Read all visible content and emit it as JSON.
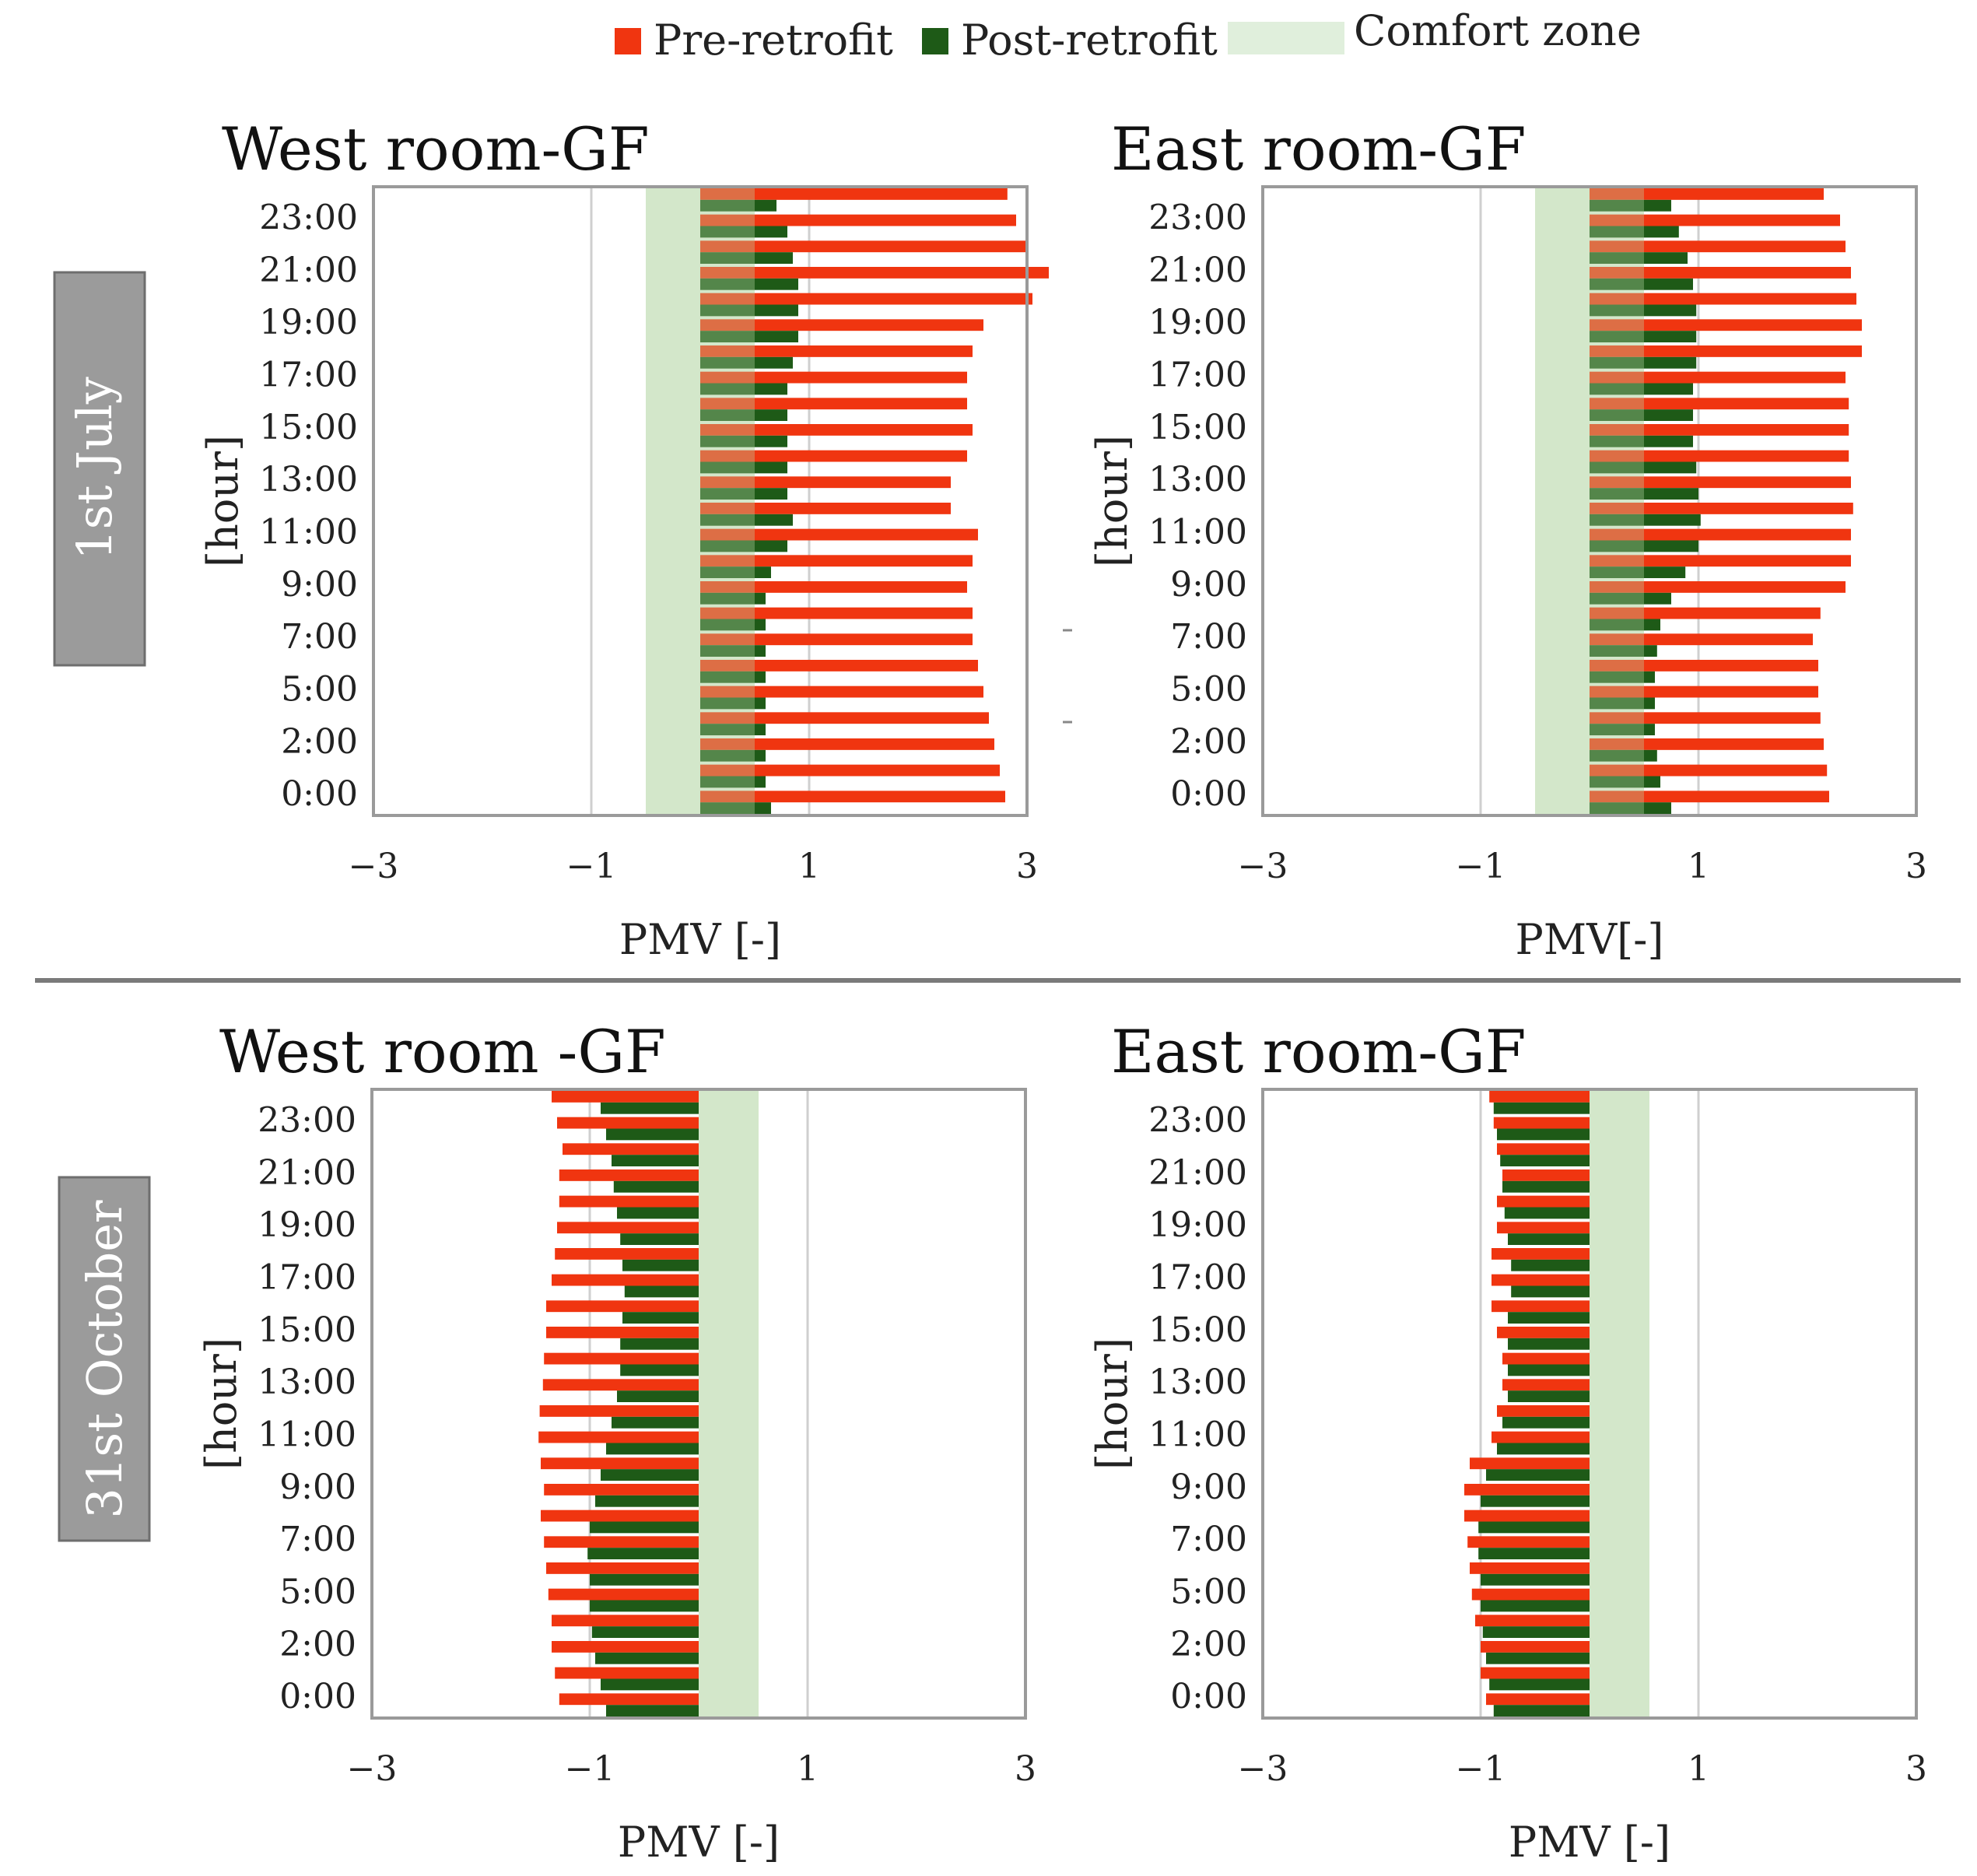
{
  "legend": {
    "pre": "Pre-retrofit",
    "post": "Post-retrofit",
    "comfort": "Comfort zone"
  },
  "colors": {
    "pre": "#f03510",
    "post": "#1e5a17",
    "comfort": "#e0efdc",
    "grid": "#cfcfcf",
    "frame": "#9a9a9a",
    "date_box": "#9b9b9b",
    "separator": "#7a7a7a"
  },
  "rows": [
    {
      "date_label": "1st July"
    },
    {
      "date_label": "31st October"
    }
  ],
  "chart_data": [
    {
      "type": "bar",
      "orientation": "horizontal",
      "title": "West room-GF",
      "date": "1st July",
      "xlabel": "PMV [-]",
      "ylabel": "[hour]",
      "xlim": [
        -3,
        3
      ],
      "xticks": [
        "−3",
        "−1",
        "1",
        "3"
      ],
      "yticks": [
        "0:00",
        "2:00",
        "5:00",
        "7:00",
        "9:00",
        "11:00",
        "13:00",
        "15:00",
        "17:00",
        "19:00",
        "21:00",
        "23:00"
      ],
      "hours": 24,
      "comfort_zone": [
        -0.5,
        0.5
      ],
      "series": [
        {
          "name": "Pre-retrofit",
          "values": [
            2.8,
            2.75,
            2.7,
            2.65,
            2.6,
            2.55,
            2.5,
            2.5,
            2.45,
            2.5,
            2.55,
            2.3,
            2.3,
            2.45,
            2.5,
            2.45,
            2.45,
            2.5,
            2.6,
            3.05,
            3.2,
            3.0,
            2.9,
            2.82
          ]
        },
        {
          "name": "Post-retrofit",
          "values": [
            0.65,
            0.6,
            0.6,
            0.6,
            0.6,
            0.6,
            0.6,
            0.6,
            0.6,
            0.65,
            0.8,
            0.85,
            0.8,
            0.8,
            0.8,
            0.8,
            0.8,
            0.85,
            0.9,
            0.9,
            0.9,
            0.85,
            0.8,
            0.7
          ]
        }
      ]
    },
    {
      "type": "bar",
      "orientation": "horizontal",
      "title": "East room-GF",
      "date": "1st July",
      "xlabel": "PMV[-]",
      "ylabel": "[hour]",
      "xlim": [
        -3,
        3
      ],
      "xticks": [
        "−3",
        "−1",
        "1",
        "3"
      ],
      "yticks": [
        "0:00",
        "2:00",
        "5:00",
        "7:00",
        "9:00",
        "11:00",
        "13:00",
        "15:00",
        "17:00",
        "19:00",
        "21:00",
        "23:00"
      ],
      "hours": 24,
      "comfort_zone": [
        -0.5,
        0.5
      ],
      "series": [
        {
          "name": "Pre-retrofit",
          "values": [
            2.2,
            2.18,
            2.15,
            2.12,
            2.1,
            2.1,
            2.05,
            2.12,
            2.35,
            2.4,
            2.4,
            2.42,
            2.4,
            2.38,
            2.38,
            2.38,
            2.35,
            2.5,
            2.5,
            2.45,
            2.4,
            2.35,
            2.3,
            2.15
          ]
        },
        {
          "name": "Post-retrofit",
          "values": [
            0.75,
            0.65,
            0.62,
            0.6,
            0.6,
            0.6,
            0.62,
            0.65,
            0.75,
            0.88,
            1.0,
            1.02,
            1.0,
            0.98,
            0.95,
            0.95,
            0.95,
            0.98,
            0.98,
            0.98,
            0.95,
            0.9,
            0.82,
            0.75
          ]
        }
      ]
    },
    {
      "type": "bar",
      "orientation": "horizontal",
      "title": "West room -GF",
      "date": "31st October",
      "xlabel": "PMV [-]",
      "ylabel": "[hour]",
      "xlim": [
        -3,
        3
      ],
      "xticks": [
        "−3",
        "−1",
        "1",
        "3"
      ],
      "yticks": [
        "0:00",
        "2:00",
        "5:00",
        "7:00",
        "9:00",
        "11:00",
        "13:00",
        "15:00",
        "17:00",
        "19:00",
        "21:00",
        "23:00"
      ],
      "hours": 24,
      "comfort_zone": [
        0,
        0.55
      ],
      "series": [
        {
          "name": "Pre-retrofit",
          "values": [
            -1.28,
            -1.32,
            -1.35,
            -1.35,
            -1.38,
            -1.4,
            -1.42,
            -1.45,
            -1.42,
            -1.45,
            -1.47,
            -1.46,
            -1.43,
            -1.42,
            -1.4,
            -1.4,
            -1.35,
            -1.32,
            -1.3,
            -1.28,
            -1.28,
            -1.25,
            -1.3,
            -1.35
          ]
        },
        {
          "name": "Post-retrofit",
          "values": [
            -0.85,
            -0.9,
            -0.95,
            -0.98,
            -1.0,
            -1.0,
            -1.02,
            -1.0,
            -0.95,
            -0.9,
            -0.85,
            -0.8,
            -0.75,
            -0.72,
            -0.72,
            -0.7,
            -0.68,
            -0.7,
            -0.72,
            -0.75,
            -0.78,
            -0.8,
            -0.85,
            -0.9
          ]
        }
      ]
    },
    {
      "type": "bar",
      "orientation": "horizontal",
      "title": "East room-GF",
      "date": "31st October",
      "xlabel": "PMV [-]",
      "ylabel": "[hour]",
      "xlim": [
        -3,
        3
      ],
      "xticks": [
        "−3",
        "−1",
        "1",
        "3"
      ],
      "yticks": [
        "0:00",
        "2:00",
        "5:00",
        "7:00",
        "9:00",
        "11:00",
        "13:00",
        "15:00",
        "17:00",
        "19:00",
        "21:00",
        "23:00"
      ],
      "hours": 24,
      "comfort_zone": [
        0,
        0.55
      ],
      "series": [
        {
          "name": "Pre-retrofit",
          "values": [
            -0.95,
            -1.0,
            -1.0,
            -1.05,
            -1.08,
            -1.1,
            -1.12,
            -1.15,
            -1.15,
            -1.1,
            -0.9,
            -0.85,
            -0.8,
            -0.8,
            -0.85,
            -0.9,
            -0.9,
            -0.9,
            -0.85,
            -0.85,
            -0.8,
            -0.85,
            -0.88,
            -0.92
          ]
        },
        {
          "name": "Post-retrofit",
          "values": [
            -0.88,
            -0.92,
            -0.95,
            -0.98,
            -1.0,
            -1.0,
            -1.02,
            -1.02,
            -1.0,
            -0.95,
            -0.85,
            -0.8,
            -0.75,
            -0.75,
            -0.75,
            -0.75,
            -0.72,
            -0.72,
            -0.75,
            -0.78,
            -0.8,
            -0.82,
            -0.85,
            -0.88
          ]
        }
      ]
    }
  ]
}
